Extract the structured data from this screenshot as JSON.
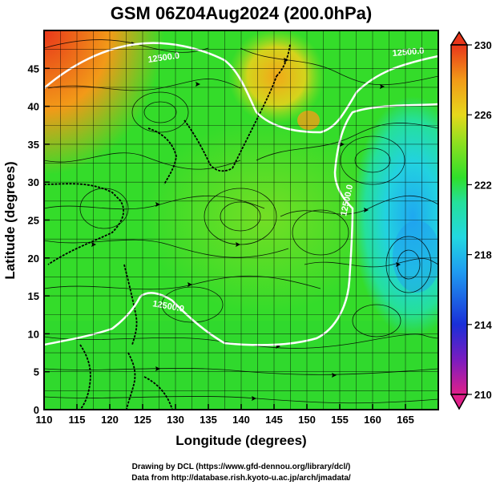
{
  "title": "GSM 06Z04Aug2024 (200.0hPa)",
  "xlabel": "Longitude (degrees)",
  "ylabel": "Latitude  (degrees)",
  "credits": [
    "Drawing by DCL (https://www.gfd-dennou.org/library/dcl/)",
    "Data from http://database.rish.kyoto-u.ac.jp/arch/jmadata/"
  ],
  "contour_labels": [
    "12500.0",
    "12500.0",
    "12500.0",
    "12500.0"
  ],
  "chart_data": {
    "type": "heatmap",
    "xlim": [
      110,
      170
    ],
    "ylim": [
      0,
      50
    ],
    "x_ticks": [
      110,
      115,
      120,
      125,
      130,
      135,
      140,
      145,
      150,
      155,
      160,
      165
    ],
    "y_ticks": [
      0,
      5,
      10,
      15,
      20,
      25,
      30,
      35,
      40,
      45
    ],
    "grid": true,
    "colorbar": {
      "min": 210,
      "max": 230,
      "ticks": [
        230,
        226,
        222,
        218,
        214,
        210
      ],
      "colors": [
        "#e0208a",
        "#7a1cc0",
        "#1a2fd8",
        "#1f9bf0",
        "#22d8e0",
        "#25e09a",
        "#2fe02a",
        "#8ee020",
        "#e6d81c",
        "#f29a18",
        "#e8361a"
      ]
    },
    "legend_placement": "right",
    "contour_level": 12500.0
  }
}
